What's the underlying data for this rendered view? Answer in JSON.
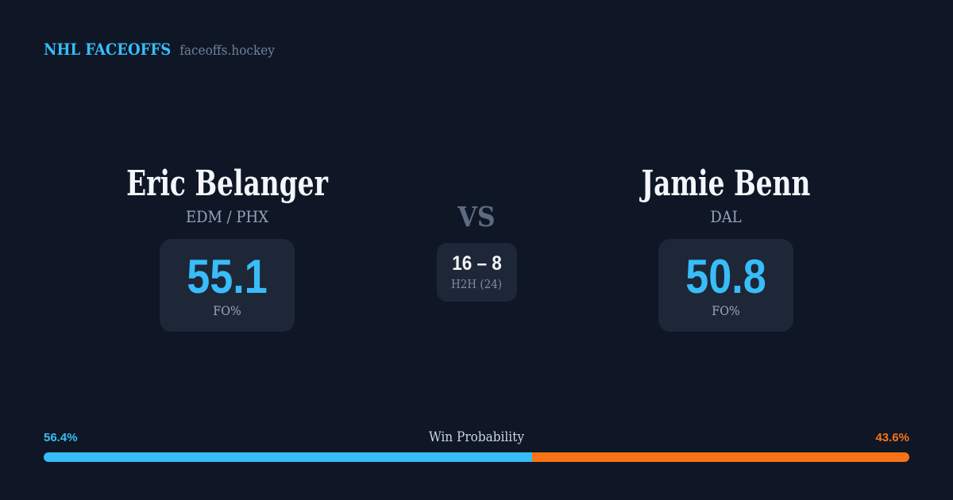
{
  "header": {
    "brand": "NHL FACEOFFS",
    "domain": "faceoffs.hockey"
  },
  "players": {
    "left": {
      "name": "Eric Belanger",
      "team": "EDM / PHX",
      "stat_value": "55.1",
      "stat_label": "FO%"
    },
    "right": {
      "name": "Jamie Benn",
      "team": "DAL",
      "stat_value": "50.8",
      "stat_label": "FO%"
    }
  },
  "matchup": {
    "vs_label": "VS",
    "h2h_score": "16 – 8",
    "h2h_label": "H2H (24)"
  },
  "win_probability": {
    "title": "Win Probability",
    "left_pct_label": "56.4%",
    "right_pct_label": "43.6%",
    "left_pct": 56.4,
    "right_pct": 43.6
  },
  "colors": {
    "background": "#0f1726",
    "card": "#1d2737",
    "accent_blue": "#38bdf8",
    "accent_orange": "#f97316",
    "text_primary": "#f3f6fa",
    "text_muted": "#94a3b8"
  },
  "chart_data": {
    "type": "bar",
    "title": "Win Probability",
    "categories": [
      "Eric Belanger",
      "Jamie Benn"
    ],
    "values": [
      56.4,
      43.6
    ],
    "series": [
      {
        "name": "Win Probability %",
        "values": [
          56.4,
          43.6
        ]
      },
      {
        "name": "FO%",
        "values": [
          55.1,
          50.8
        ]
      },
      {
        "name": "H2H wins (24 faceoffs)",
        "values": [
          16,
          8
        ]
      }
    ],
    "xlabel": "",
    "ylabel": "Win Probability (%)",
    "ylim": [
      0,
      100
    ]
  }
}
